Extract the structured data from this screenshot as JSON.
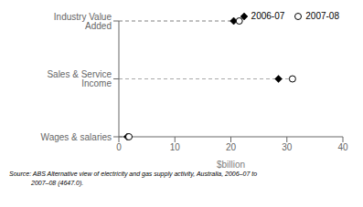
{
  "chart_data": {
    "type": "dot",
    "orientation": "horizontal",
    "categories": [
      "Wages & salaries",
      "Sales & Service Income",
      "Industry Value Added"
    ],
    "series": [
      {
        "name": "2006-07",
        "values": [
          1.5,
          28.5,
          20.5
        ],
        "marker": "diamond",
        "color": "#000000"
      },
      {
        "name": "2007-08",
        "values": [
          1.8,
          31.0,
          21.5
        ],
        "marker": "circle",
        "color": "#000000"
      }
    ],
    "xlabel": "$billion",
    "xlim": [
      0,
      40
    ],
    "xticks": [
      0,
      10,
      20,
      30,
      40
    ],
    "legend": "upper right",
    "annotations": [
      "Source: ABS Alternative view of electricity and gas supply activity, Australia, 2006–07 to",
      "2007–08 (4647.0)."
    ]
  }
}
